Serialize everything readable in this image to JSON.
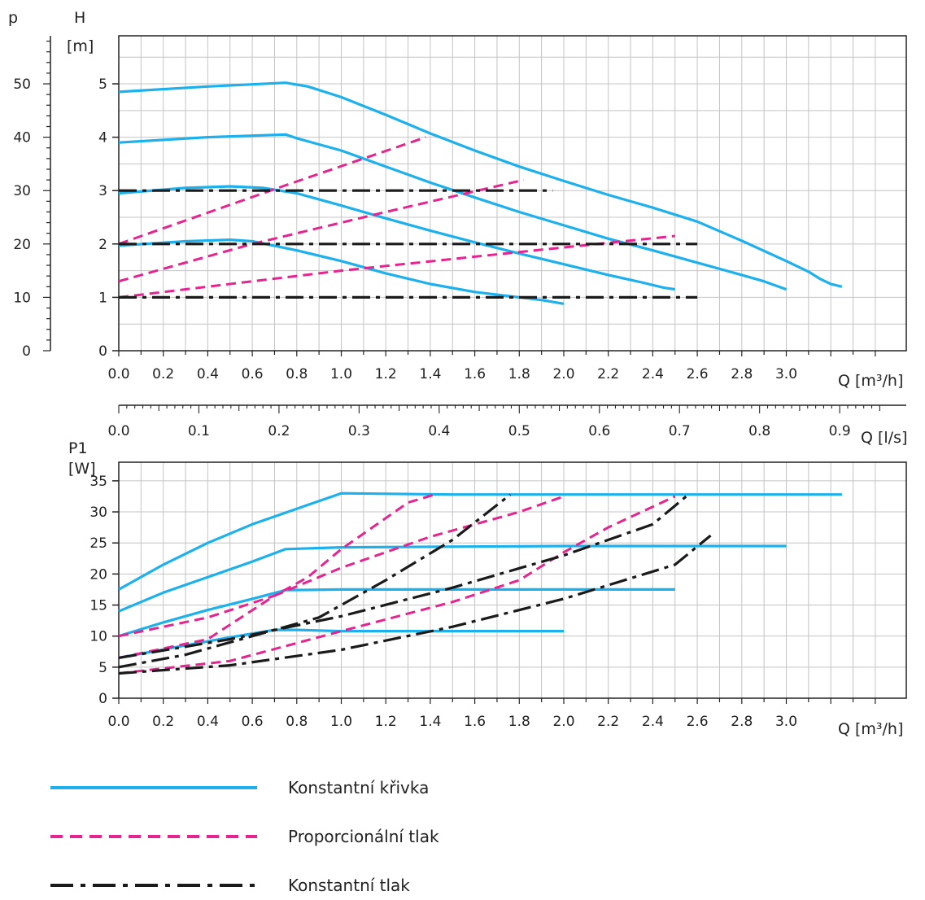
{
  "colors": {
    "constant_curve": "#1cb1ec",
    "proportional_pressure": "#e5248f",
    "constant_pressure": "#1a1a1a",
    "grid": "#c4c4c4",
    "axis": "#222222"
  },
  "legend": [
    {
      "key": "constant_curve",
      "label": "Konstantní křivka",
      "style": "solid"
    },
    {
      "key": "proportional_pressure",
      "label": "Proporcionální tlak",
      "style": "dashed"
    },
    {
      "key": "constant_pressure",
      "label": "Konstantní tlak",
      "style": "dash-dot"
    }
  ],
  "chart_data": [
    {
      "type": "line",
      "title": "",
      "xlabel": "Q [m³/h]",
      "ylabel": "H [m]",
      "y2label": "p",
      "x_ticks": [
        "0.0",
        "0.2",
        "0.4",
        "0.6",
        "0.8",
        "1.0",
        "1.2",
        "1.4",
        "1.6",
        "1.8",
        "2.0",
        "2.2",
        "2.4",
        "2.6",
        "2.8",
        "3.0"
      ],
      "y_ticks": [
        "0",
        "1",
        "2",
        "3",
        "4",
        "5"
      ],
      "y2_ticks": [
        "0",
        "10",
        "20",
        "30",
        "40",
        "50"
      ],
      "xlim": [
        0,
        3.4
      ],
      "ylim": [
        0,
        5.9
      ],
      "y2lim": [
        0,
        59
      ],
      "grid": true,
      "secondary_x_axis": {
        "label": "Q [l/s]",
        "ticks": [
          "0.0",
          "0.1",
          "0.2",
          "0.3",
          "0.4",
          "0.5",
          "0.6",
          "0.7",
          "0.8",
          "0.9"
        ]
      },
      "series": [
        {
          "style": "constant_curve",
          "points": [
            [
              0,
              4.85
            ],
            [
              0.4,
              4.95
            ],
            [
              0.75,
              5.02
            ],
            [
              0.85,
              4.95
            ],
            [
              1.0,
              4.75
            ],
            [
              1.2,
              4.42
            ],
            [
              1.4,
              4.07
            ],
            [
              1.6,
              3.75
            ],
            [
              1.8,
              3.45
            ],
            [
              2.0,
              3.18
            ],
            [
              2.2,
              2.92
            ],
            [
              2.4,
              2.68
            ],
            [
              2.6,
              2.42
            ],
            [
              2.8,
              2.06
            ],
            [
              3.0,
              1.68
            ],
            [
              3.1,
              1.48
            ],
            [
              3.15,
              1.35
            ],
            [
              3.2,
              1.25
            ],
            [
              3.25,
              1.2
            ]
          ]
        },
        {
          "style": "constant_curve",
          "points": [
            [
              0,
              3.9
            ],
            [
              0.4,
              4.0
            ],
            [
              0.75,
              4.05
            ],
            [
              0.8,
              3.98
            ],
            [
              1.0,
              3.75
            ],
            [
              1.2,
              3.45
            ],
            [
              1.4,
              3.15
            ],
            [
              1.6,
              2.87
            ],
            [
              1.8,
              2.6
            ],
            [
              2.0,
              2.35
            ],
            [
              2.2,
              2.1
            ],
            [
              2.4,
              1.88
            ],
            [
              2.6,
              1.65
            ],
            [
              2.8,
              1.42
            ],
            [
              2.9,
              1.3
            ],
            [
              3.0,
              1.15
            ]
          ]
        },
        {
          "style": "constant_curve",
          "points": [
            [
              0,
              2.95
            ],
            [
              0.3,
              3.05
            ],
            [
              0.5,
              3.08
            ],
            [
              0.65,
              3.05
            ],
            [
              0.8,
              2.95
            ],
            [
              1.0,
              2.72
            ],
            [
              1.2,
              2.48
            ],
            [
              1.4,
              2.25
            ],
            [
              1.6,
              2.03
            ],
            [
              1.8,
              1.82
            ],
            [
              2.0,
              1.62
            ],
            [
              2.2,
              1.42
            ],
            [
              2.35,
              1.28
            ],
            [
              2.45,
              1.18
            ],
            [
              2.5,
              1.15
            ]
          ]
        },
        {
          "style": "constant_curve",
          "points": [
            [
              0,
              1.97
            ],
            [
              0.3,
              2.05
            ],
            [
              0.5,
              2.08
            ],
            [
              0.6,
              2.05
            ],
            [
              0.8,
              1.88
            ],
            [
              1.0,
              1.68
            ],
            [
              1.2,
              1.45
            ],
            [
              1.4,
              1.25
            ],
            [
              1.6,
              1.1
            ],
            [
              1.8,
              1.0
            ],
            [
              1.9,
              0.95
            ],
            [
              2.0,
              0.88
            ]
          ]
        },
        {
          "style": "proportional_pressure",
          "points": [
            [
              0,
              2.0
            ],
            [
              0.75,
              3.1
            ],
            [
              1.38,
              4.0
            ]
          ]
        },
        {
          "style": "proportional_pressure",
          "points": [
            [
              0,
              1.3
            ],
            [
              0.6,
              2.0
            ],
            [
              1.2,
              2.6
            ],
            [
              1.82,
              3.2
            ]
          ]
        },
        {
          "style": "proportional_pressure",
          "points": [
            [
              0,
              1.0
            ],
            [
              1.0,
              1.5
            ],
            [
              1.8,
              1.85
            ],
            [
              2.5,
              2.15
            ]
          ]
        },
        {
          "style": "constant_pressure",
          "points": [
            [
              0,
              3.0
            ],
            [
              1.95,
              3.0
            ]
          ]
        },
        {
          "style": "constant_pressure",
          "points": [
            [
              0,
              2.0
            ],
            [
              2.6,
              2.0
            ]
          ]
        },
        {
          "style": "constant_pressure",
          "points": [
            [
              0,
              1.0
            ],
            [
              2.6,
              1.0
            ]
          ]
        }
      ]
    },
    {
      "type": "line",
      "title": "",
      "xlabel": "Q [m³/h]",
      "ylabel": "P1 [W]",
      "x_ticks": [
        "0.0",
        "0.2",
        "0.4",
        "0.6",
        "0.8",
        "1.0",
        "1.2",
        "1.4",
        "1.6",
        "1.8",
        "2.0",
        "2.2",
        "2.4",
        "2.6",
        "2.8",
        "3.0"
      ],
      "y_ticks": [
        "0",
        "5",
        "10",
        "15",
        "20",
        "25",
        "30",
        "35"
      ],
      "xlim": [
        0,
        3.4
      ],
      "ylim": [
        0,
        38
      ],
      "grid": true,
      "series": [
        {
          "style": "constant_curve",
          "points": [
            [
              0,
              17.5
            ],
            [
              0.2,
              21.5
            ],
            [
              0.4,
              25
            ],
            [
              0.6,
              28
            ],
            [
              0.8,
              30.5
            ],
            [
              1.0,
              33
            ],
            [
              1.5,
              32.8
            ],
            [
              2.0,
              32.8
            ],
            [
              2.5,
              32.8
            ],
            [
              3.0,
              32.8
            ],
            [
              3.25,
              32.8
            ]
          ]
        },
        {
          "style": "constant_curve",
          "points": [
            [
              0,
              14
            ],
            [
              0.2,
              17
            ],
            [
              0.4,
              19.5
            ],
            [
              0.6,
              22
            ],
            [
              0.75,
              24
            ],
            [
              1.0,
              24.3
            ],
            [
              2.0,
              24.5
            ],
            [
              3.0,
              24.5
            ]
          ]
        },
        {
          "style": "constant_curve",
          "points": [
            [
              0,
              10
            ],
            [
              0.2,
              12.2
            ],
            [
              0.4,
              14.2
            ],
            [
              0.6,
              16
            ],
            [
              0.75,
              17.4
            ],
            [
              1.0,
              17.5
            ],
            [
              2.5,
              17.5
            ]
          ]
        },
        {
          "style": "constant_curve",
          "points": [
            [
              0,
              6.5
            ],
            [
              0.3,
              8.5
            ],
            [
              0.5,
              9.8
            ],
            [
              0.7,
              11
            ],
            [
              0.8,
              11
            ],
            [
              1.0,
              10.8
            ],
            [
              1.5,
              10.8
            ],
            [
              2.0,
              10.8
            ]
          ]
        },
        {
          "style": "proportional_pressure",
          "points": [
            [
              0,
              10
            ],
            [
              0.4,
              13
            ],
            [
              0.7,
              16.5
            ],
            [
              0.85,
              19.5
            ],
            [
              1.0,
              24
            ],
            [
              1.2,
              29
            ],
            [
              1.3,
              31.5
            ],
            [
              1.42,
              32.8
            ]
          ]
        },
        {
          "style": "proportional_pressure",
          "points": [
            [
              0,
              6.5
            ],
            [
              0.4,
              9.5
            ],
            [
              0.7,
              16.5
            ],
            [
              1.0,
              21
            ],
            [
              1.4,
              26
            ],
            [
              1.8,
              30
            ],
            [
              2.0,
              32.5
            ]
          ]
        },
        {
          "style": "proportional_pressure",
          "points": [
            [
              0,
              4
            ],
            [
              0.5,
              6
            ],
            [
              1.0,
              10.8
            ],
            [
              1.5,
              15.5
            ],
            [
              1.8,
              19
            ],
            [
              2.0,
              23.5
            ],
            [
              2.2,
              27.5
            ],
            [
              2.5,
              32.5
            ]
          ]
        },
        {
          "style": "constant_pressure",
          "points": [
            [
              0,
              5
            ],
            [
              0.3,
              7
            ],
            [
              0.6,
              10
            ],
            [
              0.9,
              13
            ],
            [
              1.2,
              19
            ],
            [
              1.5,
              25.5
            ],
            [
              1.76,
              32.8
            ]
          ]
        },
        {
          "style": "constant_pressure",
          "points": [
            [
              0,
              4
            ],
            [
              0.5,
              5.3
            ],
            [
              1.0,
              7.8
            ],
            [
              1.5,
              11.5
            ],
            [
              2.0,
              16
            ],
            [
              2.5,
              21.5
            ],
            [
              2.66,
              26.2
            ]
          ]
        },
        {
          "style": "constant_pressure",
          "points": [
            [
              0,
              6.5
            ],
            [
              0.5,
              9.5
            ],
            [
              1.0,
              13.2
            ],
            [
              1.5,
              17.8
            ],
            [
              2.0,
              23
            ],
            [
              2.4,
              28
            ],
            [
              2.56,
              32.8
            ]
          ]
        }
      ]
    }
  ]
}
